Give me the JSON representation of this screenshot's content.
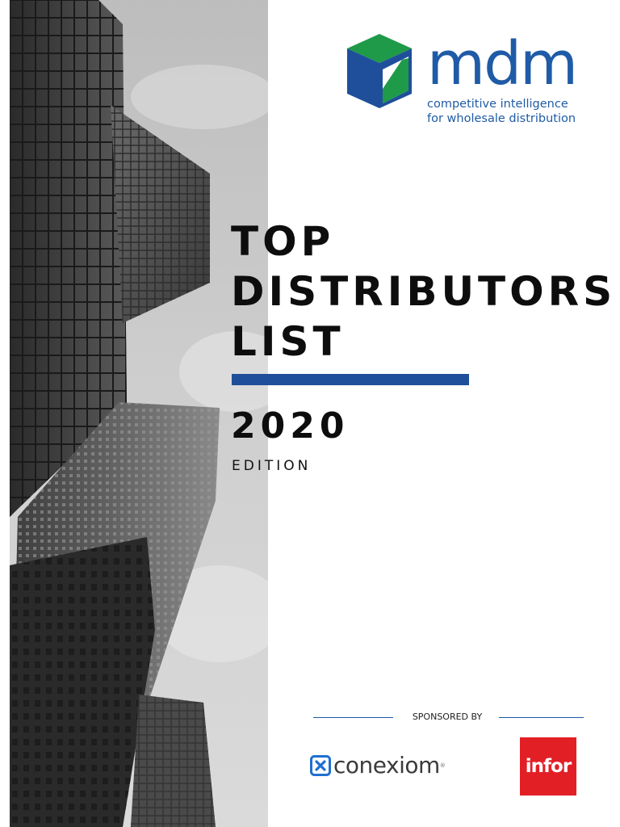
{
  "logo": {
    "name": "mdm",
    "tagline_line1": "competitive intelligence",
    "tagline_line2": "for wholesale distribution",
    "colors": {
      "brand_blue": "#1f5ba6",
      "cube_green": "#1f9a48",
      "cube_blue": "#1f4f9a"
    }
  },
  "title": {
    "line1": "TOP",
    "line2": "DISTRIBUTORS",
    "line3": "LIST",
    "year": "2020",
    "subtitle": "EDITION"
  },
  "sponsors": {
    "label": "SPONSORED BY",
    "items": [
      {
        "name": "conexiom",
        "icon": "conexiom-x-icon",
        "color": "#3b3b3b"
      },
      {
        "name": "infor",
        "color": "#e31f26"
      }
    ]
  },
  "accent_color": "#1f4f9a"
}
